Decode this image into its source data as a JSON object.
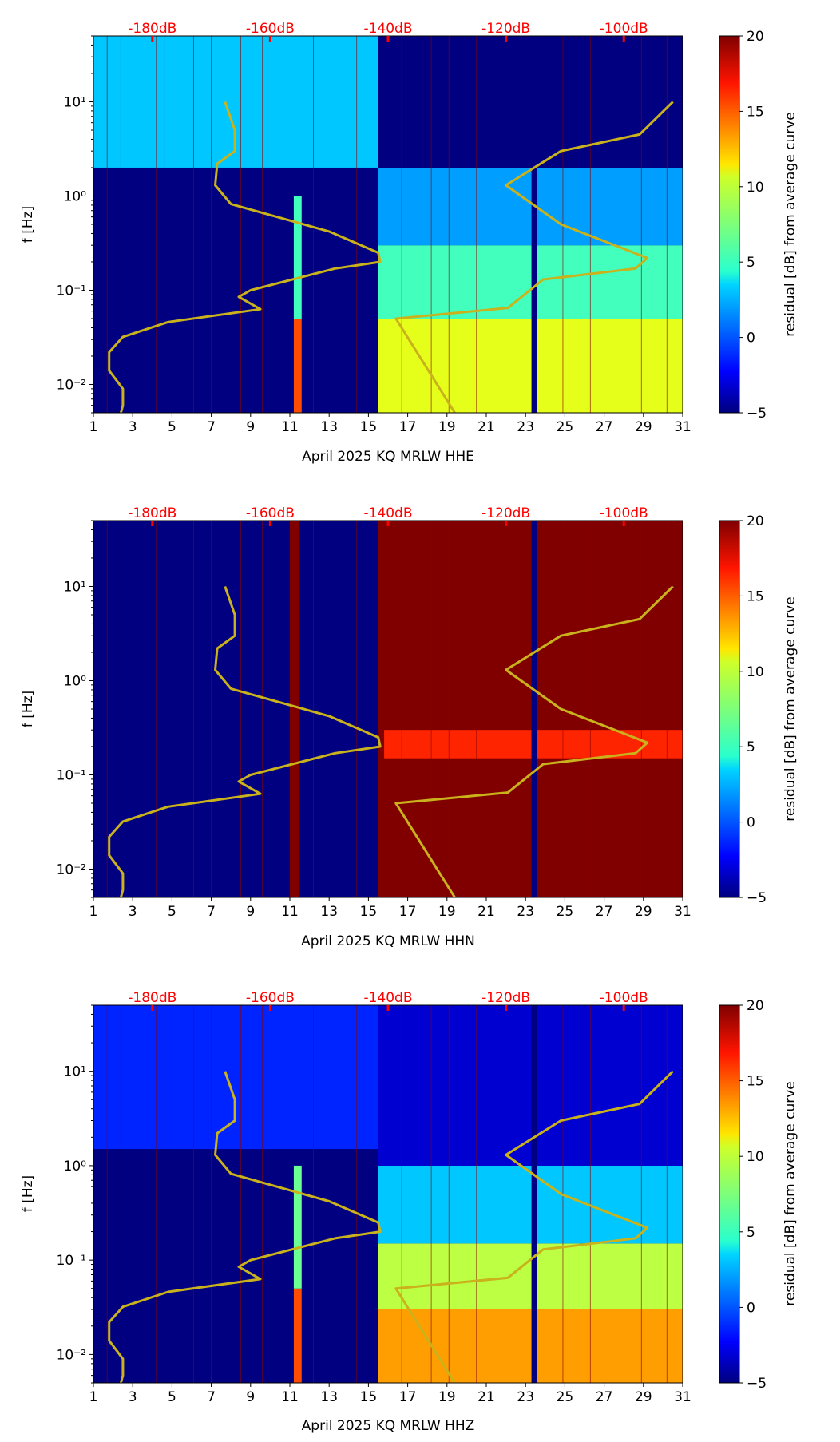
{
  "chart_data": [
    {
      "type": "heatmap",
      "title": "",
      "xlabel": "April 2025 KQ MRLW  HHE",
      "ylabel": "f [Hz]",
      "xlim": [
        1,
        31
      ],
      "ylim": [
        0.005,
        50
      ],
      "yscale": "log",
      "x_ticks": [
        "1",
        "3",
        "5",
        "7",
        "9",
        "11",
        "13",
        "15",
        "17",
        "19",
        "21",
        "23",
        "25",
        "27",
        "29",
        "31"
      ],
      "y_ticks": [
        "10^-2",
        "10^-1",
        "10^0",
        "10^1"
      ],
      "top_axis_labels": [
        "-180dB",
        "-160dB",
        "-140dB",
        "-120dB",
        "-100dB"
      ],
      "top_axis_positions": [
        4,
        10,
        16,
        22,
        28
      ],
      "colorbar": {
        "label": "residual [dB] from average curve",
        "min": -5,
        "max": 20,
        "ticks": [
          "−5",
          "0",
          "5",
          "10",
          "15",
          "20"
        ],
        "colormap": "jet"
      },
      "regions": [
        {
          "x0": 1,
          "x1": 15.5,
          "f0": 0.005,
          "f1": 2.0,
          "level": -5
        },
        {
          "x0": 1,
          "x1": 15.5,
          "f0": 2.0,
          "f1": 50,
          "level": 3
        },
        {
          "x0": 15.5,
          "x1": 31,
          "f0": 0.005,
          "f1": 0.05,
          "level": 10
        },
        {
          "x0": 15.5,
          "x1": 31,
          "f0": 0.05,
          "f1": 0.3,
          "level": 6
        },
        {
          "x0": 15.5,
          "x1": 31,
          "f0": 0.3,
          "f1": 2.0,
          "level": 2
        },
        {
          "x0": 15.5,
          "x1": 31,
          "f0": 2.0,
          "f1": 50,
          "level": -5
        },
        {
          "x0": 11.2,
          "x1": 11.6,
          "f0": 0.005,
          "f1": 0.05,
          "level": 15
        },
        {
          "x0": 11.2,
          "x1": 11.6,
          "f0": 0.05,
          "f1": 1.0,
          "level": 6
        },
        {
          "x0": 23.3,
          "x1": 23.6,
          "f0": 0.005,
          "f1": 50,
          "level": -5
        }
      ],
      "average_curve": {
        "name": "average PSD curve (dB)",
        "color": "#c9b21c",
        "points": [
          [
            2.4,
            0.005
          ],
          [
            2.5,
            0.006
          ],
          [
            2.5,
            0.009
          ],
          [
            1.8,
            0.014
          ],
          [
            1.8,
            0.022
          ],
          [
            2.5,
            0.032
          ],
          [
            4.8,
            0.046
          ],
          [
            9.5,
            0.063
          ],
          [
            8.4,
            0.085
          ],
          [
            9.0,
            0.1
          ],
          [
            13.3,
            0.17
          ],
          [
            15.6,
            0.2
          ],
          [
            15.5,
            0.25
          ],
          [
            13.0,
            0.42
          ],
          [
            8.0,
            0.82
          ],
          [
            7.2,
            1.3
          ],
          [
            7.3,
            2.2
          ],
          [
            8.2,
            3.0
          ],
          [
            8.2,
            5.0
          ],
          [
            7.7,
            10
          ]
        ],
        "tail": [
          [
            19.4,
            0.005
          ],
          [
            16.4,
            0.05
          ],
          [
            22.1,
            0.065
          ],
          [
            23.9,
            0.13
          ],
          [
            28.6,
            0.17
          ],
          [
            29.2,
            0.22
          ],
          [
            24.8,
            0.5
          ],
          [
            22.0,
            1.3
          ],
          [
            24.8,
            3.0
          ],
          [
            28.8,
            4.5
          ],
          [
            30.5,
            10
          ]
        ]
      }
    },
    {
      "type": "heatmap",
      "title": "",
      "xlabel": "April 2025 KQ MRLW  HHN",
      "ylabel": "f [Hz]",
      "xlim": [
        1,
        31
      ],
      "ylim": [
        0.005,
        50
      ],
      "yscale": "log",
      "x_ticks": [
        "1",
        "3",
        "5",
        "7",
        "9",
        "11",
        "13",
        "15",
        "17",
        "19",
        "21",
        "23",
        "25",
        "27",
        "29",
        "31"
      ],
      "y_ticks": [
        "10^-2",
        "10^-1",
        "10^0",
        "10^1"
      ],
      "top_axis_labels": [
        "-180dB",
        "-160dB",
        "-140dB",
        "-120dB",
        "-100dB"
      ],
      "top_axis_positions": [
        4,
        10,
        16,
        22,
        28
      ],
      "colorbar": {
        "label": "residual [dB] from average curve",
        "min": -5,
        "max": 20,
        "ticks": [
          "−5",
          "0",
          "5",
          "10",
          "15",
          "20"
        ],
        "colormap": "jet"
      },
      "regions": [
        {
          "x0": 1,
          "x1": 15.5,
          "f0": 0.005,
          "f1": 50,
          "level": -5
        },
        {
          "x0": 11.0,
          "x1": 11.5,
          "f0": 0.005,
          "f1": 50,
          "level": 20
        },
        {
          "x0": 15.5,
          "x1": 31,
          "f0": 0.005,
          "f1": 50,
          "level": 20
        },
        {
          "x0": 15.8,
          "x1": 31,
          "f0": 0.15,
          "f1": 0.3,
          "level": 16
        },
        {
          "x0": 23.3,
          "x1": 23.6,
          "f0": 0.005,
          "f1": 50,
          "level": -5
        }
      ],
      "average_curve": {
        "name": "average PSD curve (dB)",
        "color": "#c9b21c",
        "points": [
          [
            2.4,
            0.005
          ],
          [
            2.5,
            0.006
          ],
          [
            2.5,
            0.009
          ],
          [
            1.8,
            0.014
          ],
          [
            1.8,
            0.022
          ],
          [
            2.5,
            0.032
          ],
          [
            4.8,
            0.046
          ],
          [
            9.5,
            0.063
          ],
          [
            8.4,
            0.085
          ],
          [
            9.0,
            0.1
          ],
          [
            13.3,
            0.17
          ],
          [
            15.6,
            0.2
          ],
          [
            15.5,
            0.25
          ],
          [
            13.0,
            0.42
          ],
          [
            8.0,
            0.82
          ],
          [
            7.2,
            1.3
          ],
          [
            7.3,
            2.2
          ],
          [
            8.2,
            3.0
          ],
          [
            8.2,
            5.0
          ],
          [
            7.7,
            10
          ]
        ],
        "tail": [
          [
            19.4,
            0.005
          ],
          [
            16.4,
            0.05
          ],
          [
            22.1,
            0.065
          ],
          [
            23.9,
            0.13
          ],
          [
            28.6,
            0.17
          ],
          [
            29.2,
            0.22
          ],
          [
            24.8,
            0.5
          ],
          [
            22.0,
            1.3
          ],
          [
            24.8,
            3.0
          ],
          [
            28.8,
            4.5
          ],
          [
            30.5,
            10
          ]
        ]
      }
    },
    {
      "type": "heatmap",
      "title": "",
      "xlabel": "April 2025 KQ MRLW  HHZ",
      "ylabel": "f [Hz]",
      "xlim": [
        1,
        31
      ],
      "ylim": [
        0.005,
        50
      ],
      "yscale": "log",
      "x_ticks": [
        "1",
        "3",
        "5",
        "7",
        "9",
        "11",
        "13",
        "15",
        "17",
        "19",
        "21",
        "23",
        "25",
        "27",
        "29",
        "31"
      ],
      "y_ticks": [
        "10^-2",
        "10^-1",
        "10^0",
        "10^1"
      ],
      "top_axis_labels": [
        "-180dB",
        "-160dB",
        "-140dB",
        "-120dB",
        "-100dB"
      ],
      "top_axis_positions": [
        4,
        10,
        16,
        22,
        28
      ],
      "colorbar": {
        "label": "residual [dB] from average curve",
        "min": -5,
        "max": 20,
        "ticks": [
          "−5",
          "0",
          "5",
          "10",
          "15",
          "20"
        ],
        "colormap": "jet"
      },
      "regions": [
        {
          "x0": 1,
          "x1": 15.5,
          "f0": 0.005,
          "f1": 1.5,
          "level": -5
        },
        {
          "x0": 1,
          "x1": 15.5,
          "f0": 1.5,
          "f1": 50,
          "level": -1
        },
        {
          "x0": 15.5,
          "x1": 31,
          "f0": 0.005,
          "f1": 0.03,
          "level": 13
        },
        {
          "x0": 15.5,
          "x1": 31,
          "f0": 0.03,
          "f1": 0.15,
          "level": 9
        },
        {
          "x0": 15.5,
          "x1": 31,
          "f0": 0.15,
          "f1": 1.0,
          "level": 3
        },
        {
          "x0": 15.5,
          "x1": 31,
          "f0": 1.0,
          "f1": 50,
          "level": -3
        },
        {
          "x0": 11.2,
          "x1": 11.6,
          "f0": 0.005,
          "f1": 0.05,
          "level": 15
        },
        {
          "x0": 11.2,
          "x1": 11.6,
          "f0": 0.05,
          "f1": 1.0,
          "level": 7
        },
        {
          "x0": 23.3,
          "x1": 23.6,
          "f0": 0.005,
          "f1": 50,
          "level": -5
        }
      ],
      "average_curve": {
        "name": "average PSD curve (dB)",
        "color": "#c9b21c",
        "points": [
          [
            2.4,
            0.005
          ],
          [
            2.5,
            0.006
          ],
          [
            2.5,
            0.009
          ],
          [
            1.8,
            0.014
          ],
          [
            1.8,
            0.022
          ],
          [
            2.5,
            0.032
          ],
          [
            4.8,
            0.046
          ],
          [
            9.5,
            0.063
          ],
          [
            8.4,
            0.085
          ],
          [
            9.0,
            0.1
          ],
          [
            13.3,
            0.17
          ],
          [
            15.6,
            0.2
          ],
          [
            15.5,
            0.25
          ],
          [
            13.0,
            0.42
          ],
          [
            8.0,
            0.82
          ],
          [
            7.2,
            1.3
          ],
          [
            7.3,
            2.2
          ],
          [
            8.2,
            3.0
          ],
          [
            8.2,
            5.0
          ],
          [
            7.7,
            10
          ]
        ],
        "tail": [
          [
            19.4,
            0.005
          ],
          [
            16.4,
            0.05
          ],
          [
            22.1,
            0.065
          ],
          [
            23.9,
            0.13
          ],
          [
            28.6,
            0.17
          ],
          [
            29.2,
            0.22
          ],
          [
            24.8,
            0.5
          ],
          [
            22.0,
            1.3
          ],
          [
            24.8,
            3.0
          ],
          [
            28.8,
            4.5
          ],
          [
            30.5,
            10
          ]
        ]
      }
    }
  ],
  "colors": {
    "top_axis_label": "#ff0000",
    "gap_line": "#8b0000",
    "curve": "#c9b21c",
    "axis": "#000000"
  }
}
